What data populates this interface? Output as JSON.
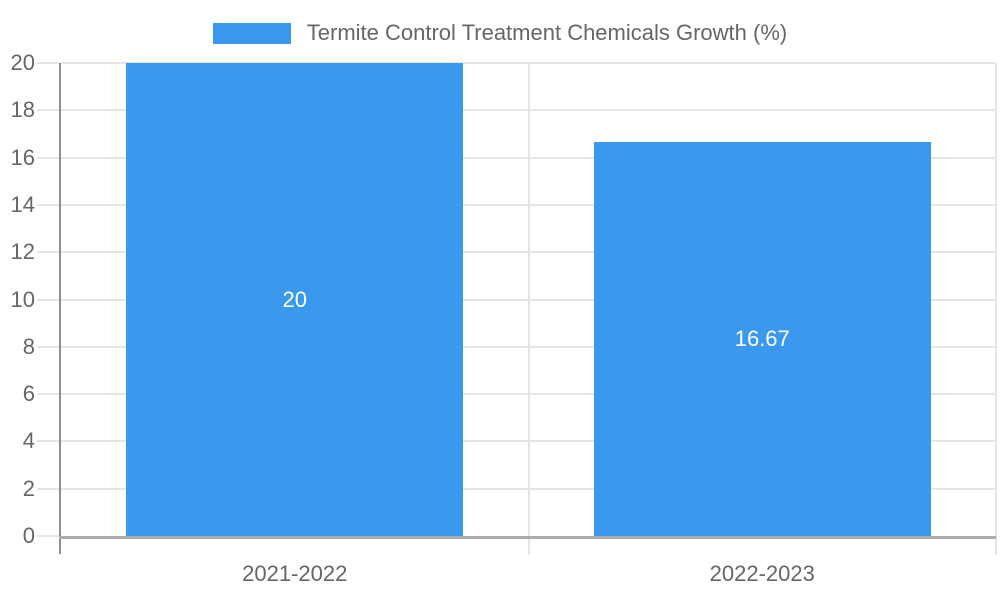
{
  "chart_data": {
    "type": "bar",
    "title": "Termite Control Treatment Chemicals Growth (%)",
    "legend_label": "Termite Control Treatment Chemicals Growth (%)",
    "legend_position": "top",
    "categories": [
      "2021-2022",
      "2022-2023"
    ],
    "series": [
      {
        "name": "Termite Control Treatment Chemicals Growth (%)",
        "values": [
          20,
          16.67
        ],
        "value_labels": [
          "20",
          "16.67"
        ],
        "color": "#3A99EC"
      }
    ],
    "xlabel": "",
    "ylabel": "",
    "ylim": [
      0,
      20
    ],
    "yticks": [
      0,
      2,
      4,
      6,
      8,
      10,
      12,
      14,
      16,
      18,
      20
    ],
    "grid": true,
    "colors": {
      "bar": "#3A99EC",
      "bar_value_label": "#FFFFFF",
      "tick_label": "#666666",
      "legend_text": "#666666",
      "gridline": "#E5E5E5",
      "y_axis_line": "#8F8F8F",
      "x_axis_line": "#ADADAD",
      "background": "#FFFFFF"
    }
  }
}
